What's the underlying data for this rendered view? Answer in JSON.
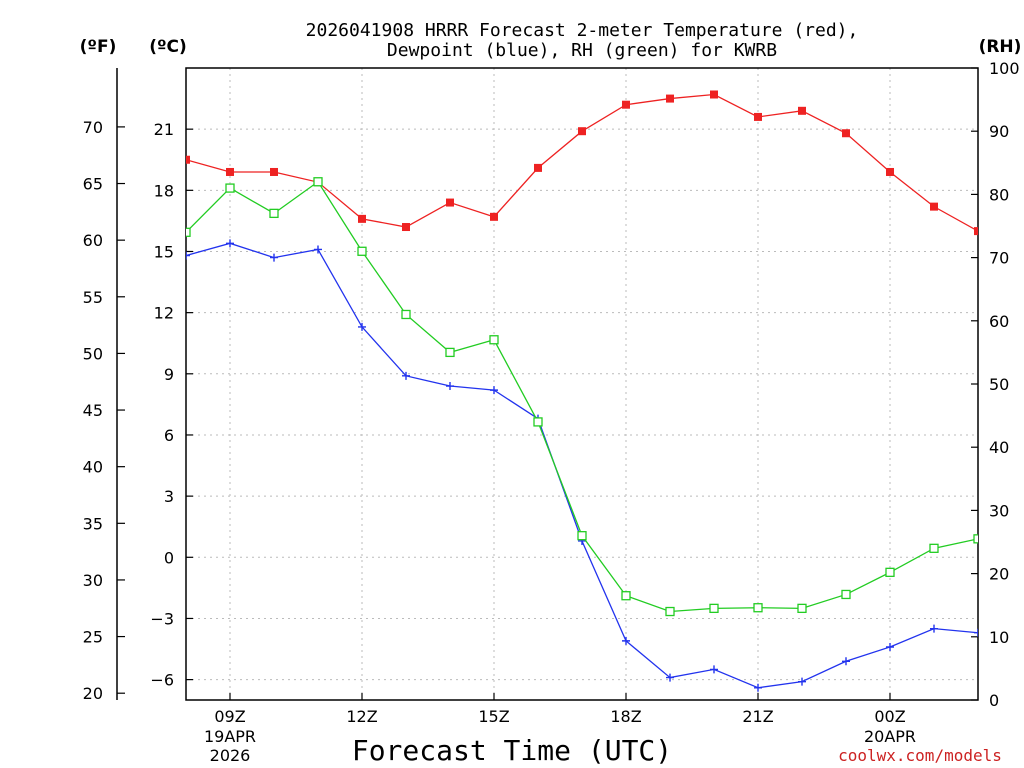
{
  "title_line1": "2026041908 HRRR Forecast 2-meter Temperature (red),",
  "title_line2": "Dewpoint (blue), RH (green) for KWRB",
  "unit_f": "(ºF)",
  "unit_c": "(ºC)",
  "unit_rh": "(RH)",
  "xlabel": "Forecast Time (UTC)",
  "credit": "coolwx.com/models",
  "colors": {
    "temperature": "#ee2222",
    "dewpoint": "#2233ee",
    "rh": "#22cc22",
    "credit": "#cc2222",
    "grid": "#bbbbbb"
  },
  "chart_data": {
    "type": "line",
    "x_hours": [
      8,
      9,
      10,
      11,
      12,
      13,
      14,
      15,
      16,
      17,
      18,
      19,
      20,
      21,
      22,
      23,
      24,
      25,
      26
    ],
    "xlim": [
      8,
      26
    ],
    "x_ticks": [
      {
        "hour": 9,
        "label": "09Z",
        "sub1": "19APR",
        "sub2": "2026"
      },
      {
        "hour": 12,
        "label": "12Z",
        "sub1": "",
        "sub2": ""
      },
      {
        "hour": 15,
        "label": "15Z",
        "sub1": "",
        "sub2": ""
      },
      {
        "hour": 18,
        "label": "18Z",
        "sub1": "",
        "sub2": ""
      },
      {
        "hour": 21,
        "label": "21Z",
        "sub1": "",
        "sub2": ""
      },
      {
        "hour": 24,
        "label": "00Z",
        "sub1": "20APR",
        "sub2": ""
      }
    ],
    "celsius_axis": {
      "ylim": [
        -7,
        24
      ],
      "ticks": [
        -6,
        -3,
        0,
        3,
        6,
        9,
        12,
        15,
        18,
        21
      ],
      "tick_labels": [
        "−6",
        "−3",
        "0",
        "3",
        "6",
        "9",
        "12",
        "15",
        "18",
        "21"
      ]
    },
    "fahrenheit_axis": {
      "ticks": [
        20,
        25,
        30,
        35,
        40,
        45,
        50,
        55,
        60,
        65,
        70
      ]
    },
    "rh_axis": {
      "ylim": [
        0,
        100
      ],
      "ticks": [
        0,
        10,
        20,
        30,
        40,
        50,
        60,
        70,
        80,
        90,
        100
      ]
    },
    "series": [
      {
        "name": "Temperature",
        "unit": "C",
        "axis": "celsius",
        "marker": "filled-square",
        "values": [
          19.5,
          18.9,
          18.9,
          18.4,
          16.6,
          16.2,
          17.4,
          16.7,
          19.1,
          20.9,
          22.2,
          22.5,
          22.7,
          21.6,
          21.9,
          20.8,
          18.9,
          17.2,
          16.0
        ]
      },
      {
        "name": "Dewpoint",
        "unit": "C",
        "axis": "celsius",
        "marker": "plus",
        "values": [
          14.8,
          15.4,
          14.7,
          15.1,
          11.3,
          8.9,
          8.4,
          8.2,
          6.8,
          0.8,
          -4.1,
          -5.9,
          -5.5,
          -6.4,
          -6.1,
          -5.1,
          -4.4,
          -3.5,
          -3.7
        ]
      },
      {
        "name": "RH",
        "unit": "%",
        "axis": "rh",
        "marker": "open-square",
        "values": [
          74,
          81,
          77,
          82,
          71,
          61,
          55,
          57,
          44,
          26,
          16.5,
          14,
          14.5,
          14.6,
          14.5,
          16.7,
          20.2,
          24,
          25.5
        ]
      }
    ]
  }
}
